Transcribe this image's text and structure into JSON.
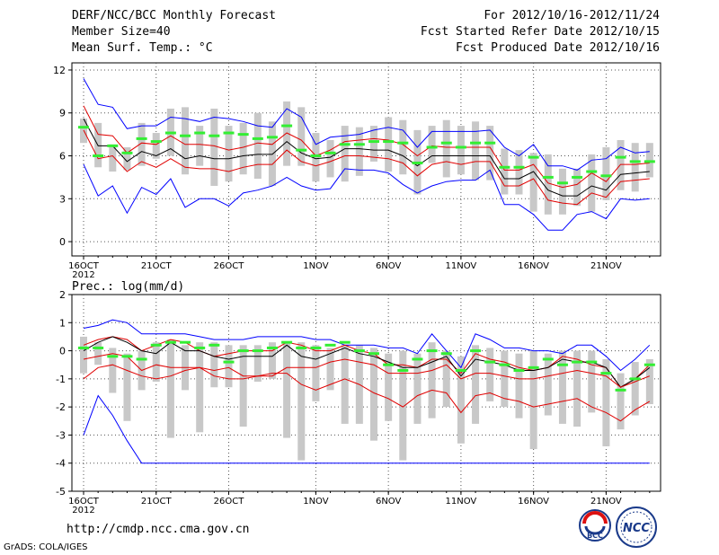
{
  "header": {
    "title": "DERF/NCC/BCC Monthly Forecast",
    "member_size": "Member Size=40",
    "variable1": "Mean Surf. Temp.: °C",
    "period": "For 2012/10/16-2012/11/24",
    "started": "Fcst Started Refer Date 2012/10/15",
    "produced": "Fcst Produced Date 2012/10/16"
  },
  "footer": {
    "url": "http://cmdp.ncc.cma.gov.cn",
    "credit": "GrADS: COLA/IGES"
  },
  "logos": {
    "bcc": "BCC",
    "ncc": "NCC"
  },
  "colors": {
    "envelope": "#0000ff",
    "percentile": "#e00000",
    "mean": "#000000",
    "median": "#33ee33",
    "box": "#c8c8c8"
  },
  "chart_data": [
    {
      "type": "line",
      "title": "Mean Surf. Temp.: °C",
      "xlabel": "",
      "ylabel": "°C",
      "ylim": [
        -1,
        12.5
      ],
      "yticks": [
        0,
        3,
        6,
        9,
        12
      ],
      "xticks": [
        {
          "day": 0,
          "label": "16OCT"
        },
        {
          "day": 5,
          "label": "21OCT"
        },
        {
          "day": 10,
          "label": "26OCT"
        },
        {
          "day": 16,
          "label": "1NOV"
        },
        {
          "day": 21,
          "label": "6NOV"
        },
        {
          "day": 26,
          "label": "11NOV"
        },
        {
          "day": 31,
          "label": "16NOV"
        },
        {
          "day": 36,
          "label": "21NOV"
        }
      ],
      "year_label": "2012",
      "grid": true,
      "x": [
        0,
        1,
        2,
        3,
        4,
        5,
        6,
        7,
        8,
        9,
        10,
        11,
        12,
        13,
        14,
        15,
        16,
        17,
        18,
        19,
        20,
        21,
        22,
        23,
        24,
        25,
        26,
        27,
        28,
        29,
        30,
        31,
        32,
        33,
        34,
        35,
        36,
        37,
        38,
        39
      ],
      "series": [
        {
          "name": "max",
          "role": "envelope",
          "values": [
            11.4,
            9.6,
            9.4,
            7.9,
            8.1,
            8.1,
            8.7,
            8.6,
            8.4,
            8.7,
            8.6,
            8.4,
            8.1,
            8.0,
            9.3,
            8.7,
            6.8,
            7.3,
            7.4,
            7.5,
            7.8,
            8.0,
            7.8,
            6.6,
            7.7,
            7.7,
            7.7,
            7.7,
            7.8,
            6.6,
            6.0,
            6.8,
            5.3,
            5.3,
            5.0,
            5.7,
            5.8,
            6.6,
            6.2,
            6.3
          ]
        },
        {
          "name": "upper",
          "role": "percentile",
          "values": [
            9.5,
            7.5,
            7.4,
            6.2,
            6.9,
            6.8,
            7.4,
            6.8,
            6.8,
            6.7,
            6.4,
            6.6,
            6.9,
            6.8,
            7.6,
            7.1,
            6.0,
            6.4,
            7.0,
            7.1,
            7.2,
            7.1,
            6.8,
            6.0,
            6.7,
            6.6,
            6.6,
            6.6,
            6.6,
            5.0,
            5.0,
            5.4,
            4.1,
            3.8,
            4.0,
            4.8,
            4.2,
            5.4,
            5.4,
            5.5
          ]
        },
        {
          "name": "mean",
          "role": "mean",
          "values": [
            8.6,
            6.7,
            6.7,
            5.6,
            6.3,
            6.0,
            6.5,
            5.8,
            6.0,
            5.8,
            5.8,
            6.0,
            6.1,
            6.1,
            7.0,
            6.2,
            5.8,
            5.9,
            6.5,
            6.5,
            6.4,
            6.4,
            6.0,
            5.3,
            6.0,
            6.0,
            6.0,
            6.0,
            6.0,
            4.4,
            4.4,
            4.9,
            3.6,
            3.2,
            3.2,
            3.9,
            3.6,
            4.7,
            4.8,
            4.9
          ]
        },
        {
          "name": "lower",
          "role": "percentile",
          "values": [
            7.8,
            5.8,
            6.0,
            4.9,
            5.6,
            5.2,
            5.8,
            5.2,
            5.1,
            5.1,
            4.9,
            5.2,
            5.4,
            5.4,
            6.4,
            5.6,
            5.3,
            5.6,
            6.0,
            6.0,
            5.9,
            5.8,
            5.5,
            4.6,
            5.4,
            5.6,
            5.4,
            5.6,
            5.6,
            3.9,
            3.9,
            4.4,
            2.9,
            2.7,
            2.6,
            3.4,
            3.1,
            4.2,
            4.3,
            4.4
          ]
        },
        {
          "name": "min",
          "role": "envelope",
          "values": [
            5.4,
            3.2,
            3.9,
            2.0,
            3.8,
            3.3,
            4.4,
            2.4,
            3.0,
            3.0,
            2.5,
            3.4,
            3.6,
            3.9,
            4.5,
            3.9,
            3.6,
            3.7,
            5.1,
            5.0,
            5.0,
            4.8,
            4.0,
            3.4,
            3.9,
            4.2,
            4.3,
            4.3,
            5.0,
            2.6,
            2.6,
            1.9,
            0.8,
            0.8,
            1.9,
            2.1,
            1.6,
            3.0,
            2.9,
            3.0
          ]
        },
        {
          "name": "median",
          "role": "marker",
          "values": [
            8.0,
            6.0,
            6.7,
            6.2,
            7.2,
            7.0,
            7.6,
            7.4,
            7.6,
            7.4,
            7.6,
            7.5,
            7.2,
            7.3,
            8.1,
            6.4,
            6.0,
            6.2,
            6.8,
            6.8,
            7.0,
            7.0,
            6.9,
            5.5,
            6.6,
            6.9,
            6.6,
            6.9,
            6.9,
            5.2,
            5.2,
            5.9,
            4.5,
            4.1,
            4.5,
            4.9,
            4.6,
            5.9,
            5.6,
            5.6
          ]
        },
        {
          "name": "box_high",
          "role": "box",
          "values": [
            8.6,
            8.3,
            6.8,
            6.6,
            8.3,
            7.6,
            9.3,
            9.4,
            8.1,
            9.3,
            8.1,
            8.3,
            9.0,
            8.4,
            9.8,
            9.4,
            7.6,
            7.1,
            8.1,
            8.0,
            8.1,
            8.7,
            8.5,
            7.8,
            8.1,
            8.5,
            8.1,
            8.4,
            8.1,
            6.5,
            6.4,
            6.2,
            6.1,
            5.1,
            5.1,
            6.1,
            6.6,
            7.1,
            6.9,
            6.9
          ]
        },
        {
          "name": "box_low",
          "role": "box",
          "values": [
            6.9,
            5.2,
            4.9,
            5.0,
            5.3,
            5.8,
            6.0,
            4.7,
            5.3,
            3.9,
            4.2,
            4.7,
            4.4,
            3.9,
            5.3,
            5.3,
            4.2,
            4.5,
            4.2,
            4.6,
            5.6,
            4.9,
            4.7,
            3.3,
            5.5,
            4.5,
            4.7,
            4.3,
            4.3,
            3.3,
            3.3,
            2.1,
            1.9,
            1.9,
            2.5,
            2.1,
            2.9,
            3.6,
            3.5,
            4.5
          ]
        }
      ]
    },
    {
      "type": "line",
      "title": "Prec.: log(mm/d)",
      "xlabel": "",
      "ylabel": "log(mm/d)",
      "ylim": [
        -5,
        2
      ],
      "yticks": [
        -5,
        -4,
        -3,
        -2,
        -1,
        0,
        1,
        2
      ],
      "xticks": [
        {
          "day": 0,
          "label": "16OCT"
        },
        {
          "day": 5,
          "label": "21OCT"
        },
        {
          "day": 10,
          "label": "26OCT"
        },
        {
          "day": 16,
          "label": "1NOV"
        },
        {
          "day": 21,
          "label": "6NOV"
        },
        {
          "day": 26,
          "label": "11NOV"
        },
        {
          "day": 31,
          "label": "16NOV"
        },
        {
          "day": 36,
          "label": "21NOV"
        }
      ],
      "year_label": "2012",
      "grid": true,
      "x": [
        0,
        1,
        2,
        3,
        4,
        5,
        6,
        7,
        8,
        9,
        10,
        11,
        12,
        13,
        14,
        15,
        16,
        17,
        18,
        19,
        20,
        21,
        22,
        23,
        24,
        25,
        26,
        27,
        28,
        29,
        30,
        31,
        32,
        33,
        34,
        35,
        36,
        37,
        38,
        39
      ],
      "series": [
        {
          "name": "max",
          "role": "envelope",
          "values": [
            0.8,
            0.9,
            1.1,
            1.0,
            0.6,
            0.6,
            0.6,
            0.6,
            0.5,
            0.4,
            0.4,
            0.4,
            0.5,
            0.5,
            0.5,
            0.5,
            0.4,
            0.4,
            0.2,
            0.2,
            0.2,
            0.1,
            0.1,
            -0.1,
            0.6,
            0.0,
            -0.6,
            0.6,
            0.4,
            0.1,
            0.1,
            0.0,
            0.0,
            -0.1,
            0.2,
            0.2,
            -0.2,
            -0.7,
            -0.3,
            0.2
          ]
        },
        {
          "name": "upper",
          "role": "percentile",
          "values": [
            0.2,
            0.4,
            0.5,
            0.4,
            0.0,
            0.2,
            0.4,
            0.3,
            0.0,
            -0.2,
            -0.1,
            0.0,
            0.0,
            0.0,
            0.3,
            0.2,
            0.0,
            0.0,
            0.2,
            0.0,
            -0.1,
            -0.5,
            -0.5,
            -0.6,
            -0.3,
            -0.3,
            -0.8,
            -0.1,
            -0.3,
            -0.4,
            -0.6,
            -0.7,
            -0.6,
            -0.2,
            -0.3,
            -0.5,
            -0.6,
            -1.3,
            -1.0,
            -0.5
          ]
        },
        {
          "name": "mean",
          "role": "mean",
          "values": [
            0.0,
            0.3,
            0.5,
            0.3,
            0.0,
            -0.1,
            0.3,
            0.0,
            0.0,
            -0.2,
            -0.3,
            -0.2,
            -0.2,
            -0.2,
            0.2,
            -0.2,
            -0.3,
            -0.1,
            0.1,
            -0.1,
            -0.2,
            -0.4,
            -0.6,
            -0.6,
            -0.4,
            -0.2,
            -0.9,
            -0.3,
            -0.4,
            -0.5,
            -0.7,
            -0.7,
            -0.6,
            -0.3,
            -0.4,
            -0.4,
            -0.6,
            -1.3,
            -1.0,
            -0.6
          ]
        },
        {
          "name": "lower",
          "role": "percentile",
          "values": [
            -0.3,
            -0.2,
            -0.1,
            -0.2,
            -0.7,
            -0.5,
            -0.6,
            -0.6,
            -0.6,
            -0.7,
            -0.6,
            -0.9,
            -0.9,
            -0.9,
            -0.6,
            -0.6,
            -0.6,
            -0.4,
            -0.3,
            -0.4,
            -0.5,
            -0.8,
            -0.8,
            -0.8,
            -0.7,
            -0.5,
            -1.0,
            -0.8,
            -0.8,
            -0.9,
            -1.0,
            -1.0,
            -0.9,
            -0.8,
            -0.7,
            -0.8,
            -0.9,
            -1.3,
            -1.1,
            -0.9
          ]
        },
        {
          "name": "low",
          "role": "percentile",
          "values": [
            -1.0,
            -0.6,
            -0.5,
            -0.7,
            -0.9,
            -1.0,
            -0.9,
            -0.7,
            -0.6,
            -0.9,
            -1.0,
            -1.0,
            -0.9,
            -0.8,
            -0.8,
            -1.2,
            -1.4,
            -1.2,
            -1.0,
            -1.2,
            -1.5,
            -1.7,
            -2.0,
            -1.6,
            -1.4,
            -1.5,
            -2.2,
            -1.6,
            -1.5,
            -1.7,
            -1.8,
            -2.0,
            -1.9,
            -1.8,
            -1.7,
            -2.0,
            -2.2,
            -2.5,
            -2.1,
            -1.8
          ]
        },
        {
          "name": "min",
          "role": "envelope",
          "values": [
            -3.0,
            -1.6,
            -2.3,
            -3.2,
            -4.0,
            -4.0,
            -4.0,
            -4.0,
            -4.0,
            -4.0,
            -4.0,
            -4.0,
            -4.0,
            -4.0,
            -4.0,
            -4.0,
            -4.0,
            -4.0,
            -4.0,
            -4.0,
            -4.0,
            -4.0,
            -4.0,
            -4.0,
            -4.0,
            -4.0,
            -4.0,
            -4.0,
            -4.0,
            -4.0,
            -4.0,
            -4.0,
            -4.0,
            -4.0,
            -4.0,
            -4.0,
            -4.0,
            -4.0,
            -4.0,
            -4.0
          ]
        },
        {
          "name": "median",
          "role": "marker",
          "values": [
            0.1,
            0.1,
            -0.2,
            -0.2,
            -0.3,
            0.2,
            0.3,
            0.3,
            0.1,
            0.2,
            -0.4,
            0.0,
            0.0,
            0.1,
            0.3,
            0.1,
            0.1,
            0.2,
            0.3,
            0.0,
            -0.1,
            -0.5,
            -0.7,
            -0.3,
            0.0,
            -0.1,
            -0.7,
            0.0,
            -0.4,
            -0.5,
            -0.7,
            -0.6,
            -0.3,
            -0.5,
            -0.4,
            -0.4,
            -0.8,
            -1.4,
            -1.0,
            -0.5
          ]
        },
        {
          "name": "box_high",
          "role": "box",
          "values": [
            0.5,
            0.3,
            0.1,
            -0.1,
            0.0,
            0.3,
            0.4,
            0.2,
            0.3,
            0.3,
            0.2,
            0.2,
            0.2,
            0.3,
            0.3,
            0.3,
            0.2,
            0.1,
            0.2,
            0.2,
            0.1,
            -0.1,
            0.0,
            -0.1,
            0.3,
            0.0,
            -0.2,
            0.2,
            0.1,
            0.0,
            -0.1,
            0.0,
            -0.1,
            0.0,
            0.0,
            0.0,
            -0.3,
            -0.8,
            -0.4,
            -0.3
          ]
        },
        {
          "name": "box_low",
          "role": "box",
          "values": [
            -0.8,
            -0.5,
            -1.5,
            -2.5,
            -1.4,
            -1.1,
            -3.1,
            -1.4,
            -2.9,
            -1.3,
            -1.3,
            -2.7,
            -1.1,
            -1.0,
            -3.1,
            -3.9,
            -1.8,
            -1.4,
            -2.6,
            -2.6,
            -3.2,
            -2.5,
            -3.9,
            -2.6,
            -2.4,
            -2.0,
            -3.3,
            -2.6,
            -1.8,
            -2.0,
            -2.4,
            -3.5,
            -2.3,
            -2.6,
            -2.7,
            -2.2,
            -3.4,
            -2.8,
            -2.3,
            -1.9
          ]
        }
      ]
    }
  ]
}
